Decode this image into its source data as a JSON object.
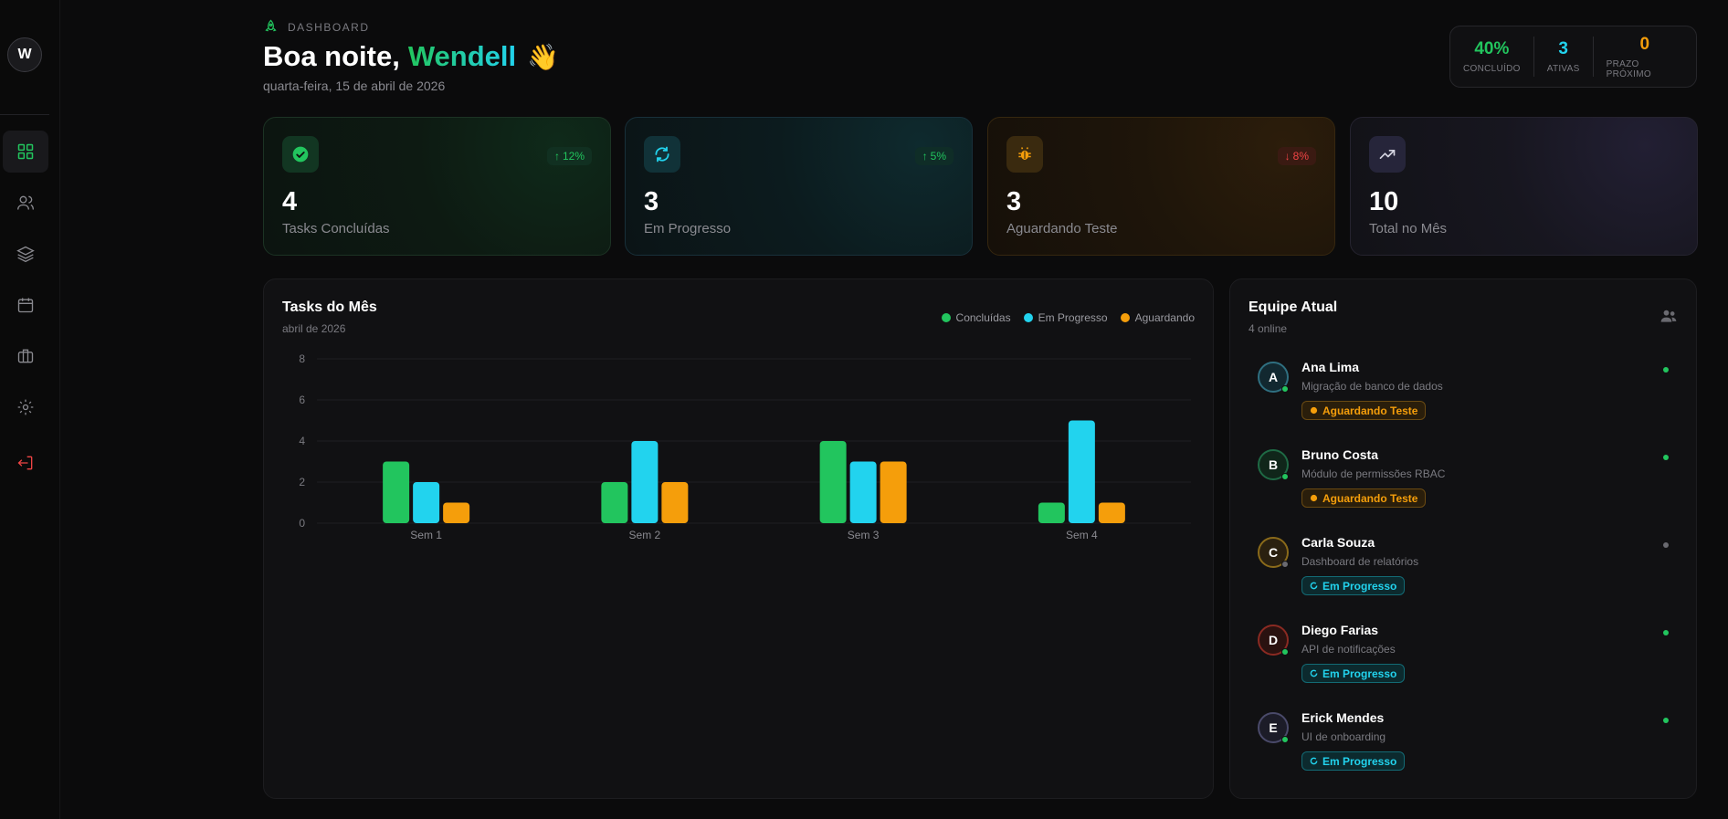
{
  "sidebar": {
    "user_initial": "W",
    "nav": [
      {
        "name": "dashboard-icon",
        "active": true
      },
      {
        "name": "users-icon"
      },
      {
        "name": "layers-icon"
      },
      {
        "name": "calendar-icon"
      },
      {
        "name": "briefcase-icon"
      },
      {
        "name": "settings-icon"
      },
      {
        "name": "logout-icon"
      }
    ]
  },
  "header": {
    "tag": "DASHBOARD",
    "greeting": "Boa noite,",
    "name": "Wendell",
    "emoji": "👋",
    "date": "quarta-feira, 15 de abril de 2026"
  },
  "summary": [
    {
      "value": "40%",
      "label": "CONCLUÍDO",
      "color": "#22c55e"
    },
    {
      "value": "3",
      "label": "ATIVAS",
      "color": "#22d3ee"
    },
    {
      "value": "0",
      "label": "PRAZO PRÓXIMO",
      "color": "#f59e0b"
    }
  ],
  "stats": [
    {
      "value": "4",
      "label": "Tasks Concluídas",
      "badge": "12%",
      "trend": "up",
      "icon": "check-circle-icon"
    },
    {
      "value": "3",
      "label": "Em Progresso",
      "badge": "5%",
      "trend": "up",
      "icon": "refresh-icon"
    },
    {
      "value": "3",
      "label": "Aguardando Teste",
      "badge": "8%",
      "trend": "down",
      "icon": "bug-icon"
    },
    {
      "value": "10",
      "label": "Total no Mês",
      "badge": "",
      "trend": "",
      "icon": "trending-up-icon"
    }
  ],
  "chart_panel": {
    "title": "Tasks do Mês",
    "subtitle": "abril de 2026"
  },
  "chart_data": {
    "type": "bar",
    "categories": [
      "Sem 1",
      "Sem 2",
      "Sem 3",
      "Sem 4"
    ],
    "series": [
      {
        "name": "Concluídas",
        "values": [
          3,
          2,
          4,
          1
        ],
        "color": "#22c55e"
      },
      {
        "name": "Em Progresso",
        "values": [
          2,
          4,
          3,
          5
        ],
        "color": "#22d3ee"
      },
      {
        "name": "Aguardando",
        "values": [
          1,
          2,
          3,
          1
        ],
        "color": "#f59e0b"
      }
    ],
    "ylim": [
      0,
      8
    ],
    "yticks": [
      0,
      2,
      4,
      6,
      8
    ],
    "grid": true,
    "legend": "top-right"
  },
  "team": {
    "title": "Equipe Atual",
    "subtitle": "4 online",
    "members": [
      {
        "initial": "A",
        "name": "Ana Lima",
        "task": "Migração de banco de dados",
        "status": "Aguardando Teste",
        "status_type": "waiting",
        "online": true
      },
      {
        "initial": "B",
        "name": "Bruno Costa",
        "task": "Módulo de permissões RBAC",
        "status": "Aguardando Teste",
        "status_type": "waiting",
        "online": true
      },
      {
        "initial": "C",
        "name": "Carla Souza",
        "task": "Dashboard de relatórios",
        "status": "Em Progresso",
        "status_type": "progress",
        "online": false
      },
      {
        "initial": "D",
        "name": "Diego Farias",
        "task": "API de notificações",
        "status": "Em Progresso",
        "status_type": "progress",
        "online": true
      },
      {
        "initial": "E",
        "name": "Erick Mendes",
        "task": "UI de onboarding",
        "status": "Em Progresso",
        "status_type": "progress",
        "online": true
      }
    ]
  }
}
